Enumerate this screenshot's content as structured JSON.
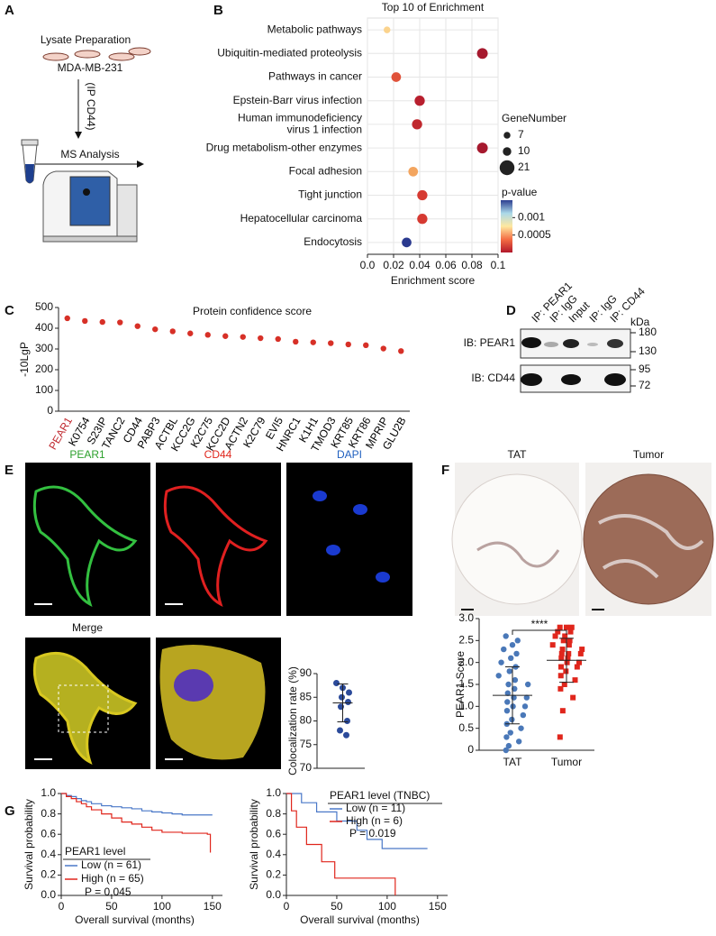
{
  "figure": {
    "panel_labels": [
      "A",
      "B",
      "C",
      "D",
      "E",
      "F",
      "G"
    ],
    "schematic": {
      "lysate": "Lysate Preparation",
      "cell_line": "MDA-MB-231",
      "ip": "(IP CD44)",
      "ms": "MS Analysis"
    },
    "blot": {
      "lanes": [
        "IP: PEAR1",
        "IP: IgG",
        "Input",
        "IP: IgG",
        "IP: CD44"
      ],
      "unit": "kDa",
      "rows": [
        "IB: PEAR1",
        "IB: CD44"
      ],
      "markers": [
        180,
        130,
        95,
        72
      ]
    },
    "microscopy": {
      "channels": [
        "PEAR1",
        "CD44",
        "DAPI",
        "Merge"
      ]
    },
    "ihc": {
      "labels": [
        "TAT",
        "Tumor"
      ]
    }
  },
  "chart_data": [
    {
      "type": "bubble",
      "title": "Top 10 of Enrichment",
      "x_label": "Enrichment score",
      "categories": [
        "Metabolic pathways",
        "Ubiquitin-mediated proteolysis",
        "Pathways in cancer",
        "Epstein-Barr virus infection",
        "Human immunodeficiency\nvirus 1 infection",
        "Drug metabolism-other enzymes",
        "Focal adhesion",
        "Tight junction",
        "Hepatocellular carcinoma",
        "Endocytosis"
      ],
      "values": [
        0.015,
        0.088,
        0.022,
        0.04,
        0.038,
        0.088,
        0.035,
        0.042,
        0.042,
        0.03
      ],
      "sizes": [
        7,
        14,
        12,
        13,
        13,
        14,
        12,
        13,
        13,
        12
      ],
      "p_values": [
        0.0006,
        0.0001,
        0.00025,
        0.00012,
        0.00015,
        0.0001,
        0.00035,
        0.0002,
        0.0002,
        0.0014
      ],
      "colors": [
        "#fbd38d",
        "#a6192e",
        "#e0523a",
        "#b81f2e",
        "#c0282e",
        "#a6192e",
        "#f3a55f",
        "#d63a32",
        "#d63a32",
        "#2b3a8f"
      ],
      "xlim": [
        0,
        0.1
      ],
      "xticks": [
        {
          "value": 0,
          "label": "0.0"
        },
        0.02,
        0.04,
        0.06,
        0.08,
        0.1
      ],
      "grid": true,
      "size_legend": {
        "title": "GeneNumber",
        "values": [
          7,
          10,
          21
        ],
        "color": "#222222"
      },
      "color_legend": {
        "title": "p-value",
        "lim": [
          0,
          0.0015
        ],
        "ticks": [
          0.001,
          0.0005
        ],
        "colors": [
          "#b2182b",
          "#f46d43",
          "#fee8a0",
          "#abd9e9",
          "#2c3e91"
        ]
      }
    },
    {
      "type": "dot",
      "title": "Protein confidence score",
      "y_label": "-10LgP",
      "categories": [
        "PEAR1",
        "K0754",
        "S23IP",
        "TANC2",
        "CD44",
        "PABP3",
        "ACTBL",
        "KCC2G",
        "K2C75",
        "KCC2D",
        "ACTN2",
        "K2C79",
        "EVI5",
        "HNRC1",
        "K1H1",
        "TMOD3",
        "KRT85",
        "KRT86",
        "MPRIP",
        "GLU2B"
      ],
      "values": [
        448,
        435,
        430,
        428,
        410,
        395,
        385,
        375,
        368,
        362,
        358,
        352,
        348,
        335,
        332,
        328,
        322,
        318,
        302,
        290
      ],
      "color": "#d73027",
      "label_colors": [
        "#c0282e",
        "#000000",
        "#000000",
        "#000000",
        "#000000",
        "#000000",
        "#000000",
        "#000000",
        "#000000",
        "#000000",
        "#000000",
        "#000000",
        "#000000",
        "#000000",
        "#000000",
        "#000000",
        "#000000",
        "#000000",
        "#000000",
        "#000000"
      ],
      "ylim": [
        0,
        500
      ],
      "yticks": [
        0,
        100,
        200,
        300,
        400,
        500
      ]
    },
    {
      "type": "strip",
      "y_label": "Colocalization rate (%)",
      "values": [
        88,
        87,
        86,
        85,
        84,
        83,
        80,
        78,
        77
      ],
      "mean": 83.8,
      "sd": 4,
      "color": "#2b4a9a",
      "ylim": [
        70,
        90
      ],
      "yticks": [
        70,
        75,
        80,
        85,
        90
      ]
    },
    {
      "type": "groups",
      "y_label": "PEAR1 Score",
      "categories": [
        "TAT",
        "Tumor"
      ],
      "annotation": "****",
      "groups": [
        {
          "values": [
            0.0,
            0.1,
            0.2,
            0.3,
            0.4,
            0.5,
            0.6,
            0.7,
            0.8,
            0.9,
            1.0,
            1.0,
            1.1,
            1.2,
            1.2,
            1.3,
            1.4,
            1.5,
            1.5,
            1.6,
            1.7,
            1.8,
            1.9,
            2.0,
            2.1,
            2.2,
            2.3,
            2.4,
            2.5,
            2.6
          ],
          "mean": 1.25,
          "sd": 0.65,
          "color": "#4a78b8",
          "marker": "circle"
        },
        {
          "values": [
            0.3,
            0.9,
            1.2,
            1.4,
            1.5,
            1.6,
            1.7,
            1.8,
            1.9,
            1.9,
            2.0,
            2.0,
            2.1,
            2.1,
            2.2,
            2.2,
            2.2,
            2.3,
            2.3,
            2.4,
            2.4,
            2.5,
            2.5,
            2.6,
            2.6,
            2.7,
            2.7,
            2.8,
            2.8,
            2.8
          ],
          "mean": 2.05,
          "sd": 0.5,
          "color": "#e0261c",
          "marker": "square"
        }
      ],
      "ylim": [
        0,
        3
      ],
      "yticks": [
        0,
        0.5,
        {
          "value": 1,
          "label": "1.0"
        },
        1.5,
        {
          "value": 2,
          "label": "2.0"
        },
        2.5,
        {
          "value": 3,
          "label": "3.0"
        }
      ]
    },
    {
      "type": "km",
      "x_label": "Overall survival (months)",
      "y_label": "Survival probability",
      "legend_title": "PEAR1 level",
      "annotation": "P = 0.045",
      "series": [
        {
          "name": "Low (n = 61)",
          "color": "#4a78c8",
          "x": [
            0,
            5,
            10,
            15,
            20,
            25,
            30,
            40,
            50,
            60,
            70,
            80,
            90,
            100,
            110,
            120,
            150
          ],
          "values": [
            1,
            0.98,
            0.97,
            0.95,
            0.93,
            0.92,
            0.9,
            0.88,
            0.87,
            0.86,
            0.85,
            0.83,
            0.82,
            0.81,
            0.8,
            0.79,
            0.79
          ]
        },
        {
          "name": "High (n = 65)",
          "color": "#e0261c",
          "x": [
            0,
            5,
            10,
            15,
            20,
            25,
            30,
            40,
            50,
            60,
            70,
            80,
            90,
            100,
            110,
            120,
            145,
            148
          ],
          "values": [
            1,
            0.97,
            0.95,
            0.92,
            0.9,
            0.87,
            0.84,
            0.8,
            0.76,
            0.72,
            0.7,
            0.67,
            0.64,
            0.62,
            0.62,
            0.61,
            0.6,
            0.42
          ]
        }
      ],
      "xlim": [
        0,
        160
      ],
      "xticks": [
        0,
        50,
        100,
        150
      ],
      "ylim": [
        0,
        1
      ],
      "yticks": [
        {
          "value": 0,
          "label": "0.0"
        },
        0.2,
        0.4,
        0.6,
        0.8,
        {
          "value": 1,
          "label": "1.0"
        }
      ]
    },
    {
      "type": "km",
      "x_label": "Overall survival (months)",
      "y_label": "Survival probability",
      "legend_title": "PEAR1 level (TNBC)",
      "annotation": "P = 0.019",
      "series": [
        {
          "name": "Low (n = 11)",
          "color": "#4a78c8",
          "x": [
            0,
            15,
            30,
            50,
            70,
            80,
            95,
            140
          ],
          "values": [
            1,
            0.91,
            0.82,
            0.73,
            0.64,
            0.55,
            0.46,
            0.46
          ]
        },
        {
          "name": "High (n = 6)",
          "color": "#e0261c",
          "x": [
            0,
            5,
            10,
            20,
            35,
            48,
            108
          ],
          "values": [
            1,
            0.83,
            0.67,
            0.5,
            0.33,
            0.17,
            0
          ]
        }
      ],
      "xlim": [
        0,
        160
      ],
      "xticks": [
        0,
        50,
        100,
        150
      ],
      "ylim": [
        0,
        1
      ],
      "yticks": [
        {
          "value": 0,
          "label": "0.0"
        },
        0.2,
        0.4,
        0.6,
        0.8,
        {
          "value": 1,
          "label": "1.0"
        }
      ]
    }
  ]
}
